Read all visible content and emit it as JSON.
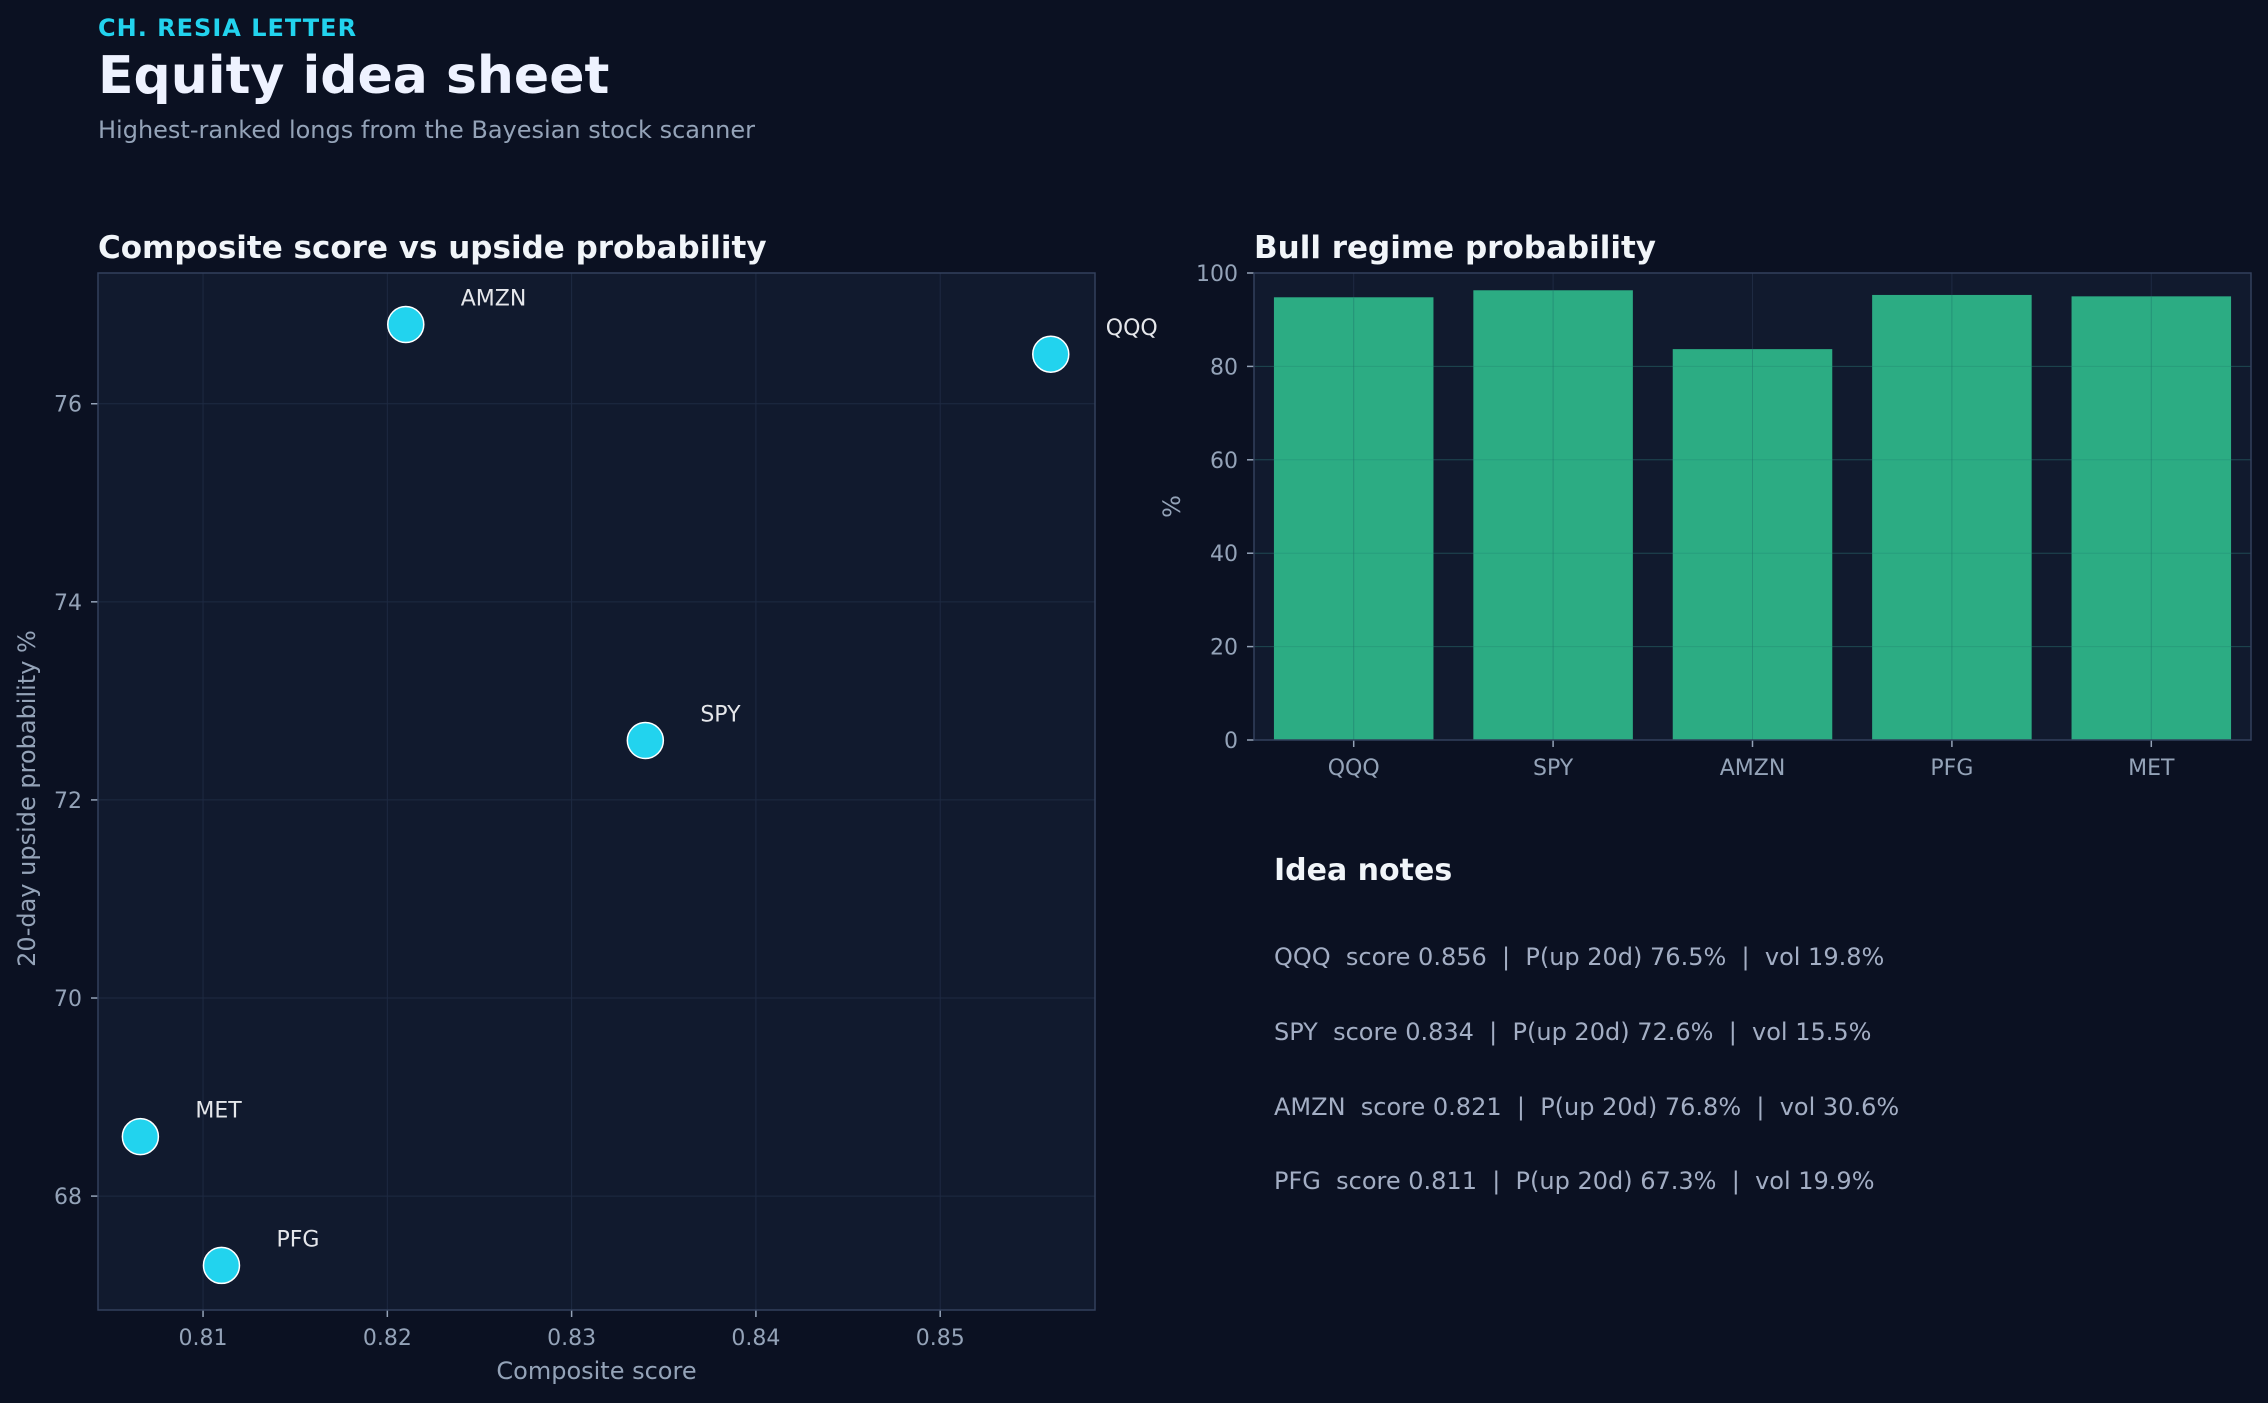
{
  "header": {
    "kicker": "CH. RESIA LETTER",
    "title": "Equity idea sheet",
    "subtitle": "Highest-ranked longs from the Bayesian stock scanner"
  },
  "colors": {
    "background": "#0b1122",
    "plot_background": "#111a2e",
    "point": "#22d3ee",
    "bar": "#2eb88a",
    "grid": "#1e2a42",
    "text_muted": "#94a3b8"
  },
  "chart_data": [
    {
      "type": "scatter",
      "title": "Composite score vs upside probability",
      "xlabel": "Composite score",
      "ylabel": "20-day upside probability %",
      "xlim": [
        0.8043,
        0.8584
      ],
      "ylim": [
        66.85,
        77.32
      ],
      "xticks": [
        0.81,
        0.82,
        0.83,
        0.84,
        0.85
      ],
      "xtick_labels": [
        "0.81",
        "0.82",
        "0.83",
        "0.84",
        "0.85"
      ],
      "yticks": [
        68,
        70,
        72,
        74,
        76
      ],
      "ytick_labels": [
        "68",
        "70",
        "72",
        "74",
        "76"
      ],
      "grid": true,
      "points": [
        {
          "label": "QQQ",
          "x": 0.856,
          "y": 76.5
        },
        {
          "label": "SPY",
          "x": 0.834,
          "y": 72.6
        },
        {
          "label": "AMZN",
          "x": 0.821,
          "y": 76.8
        },
        {
          "label": "PFG",
          "x": 0.811,
          "y": 67.3
        },
        {
          "label": "MET",
          "x": 0.8066,
          "y": 68.6
        }
      ]
    },
    {
      "type": "bar",
      "title": "Bull regime probability",
      "xlabel": "",
      "ylabel": "%",
      "ylim": [
        0,
        100
      ],
      "yticks": [
        0,
        20,
        40,
        60,
        80,
        100
      ],
      "ytick_labels": [
        "0",
        "20",
        "40",
        "60",
        "80",
        "100"
      ],
      "grid": true,
      "categories": [
        "QQQ",
        "SPY",
        "AMZN",
        "PFG",
        "MET"
      ],
      "values": [
        94.8,
        96.3,
        83.7,
        95.3,
        95.0
      ]
    }
  ],
  "notes": {
    "title": "Idea notes",
    "items": [
      "QQQ  score 0.856  |  P(up 20d) 76.5%  |  vol 19.8%",
      "SPY  score 0.834  |  P(up 20d) 72.6%  |  vol 15.5%",
      "AMZN  score 0.821  |  P(up 20d) 76.8%  |  vol 30.6%",
      "PFG  score 0.811  |  P(up 20d) 67.3%  |  vol 19.9%"
    ]
  }
}
